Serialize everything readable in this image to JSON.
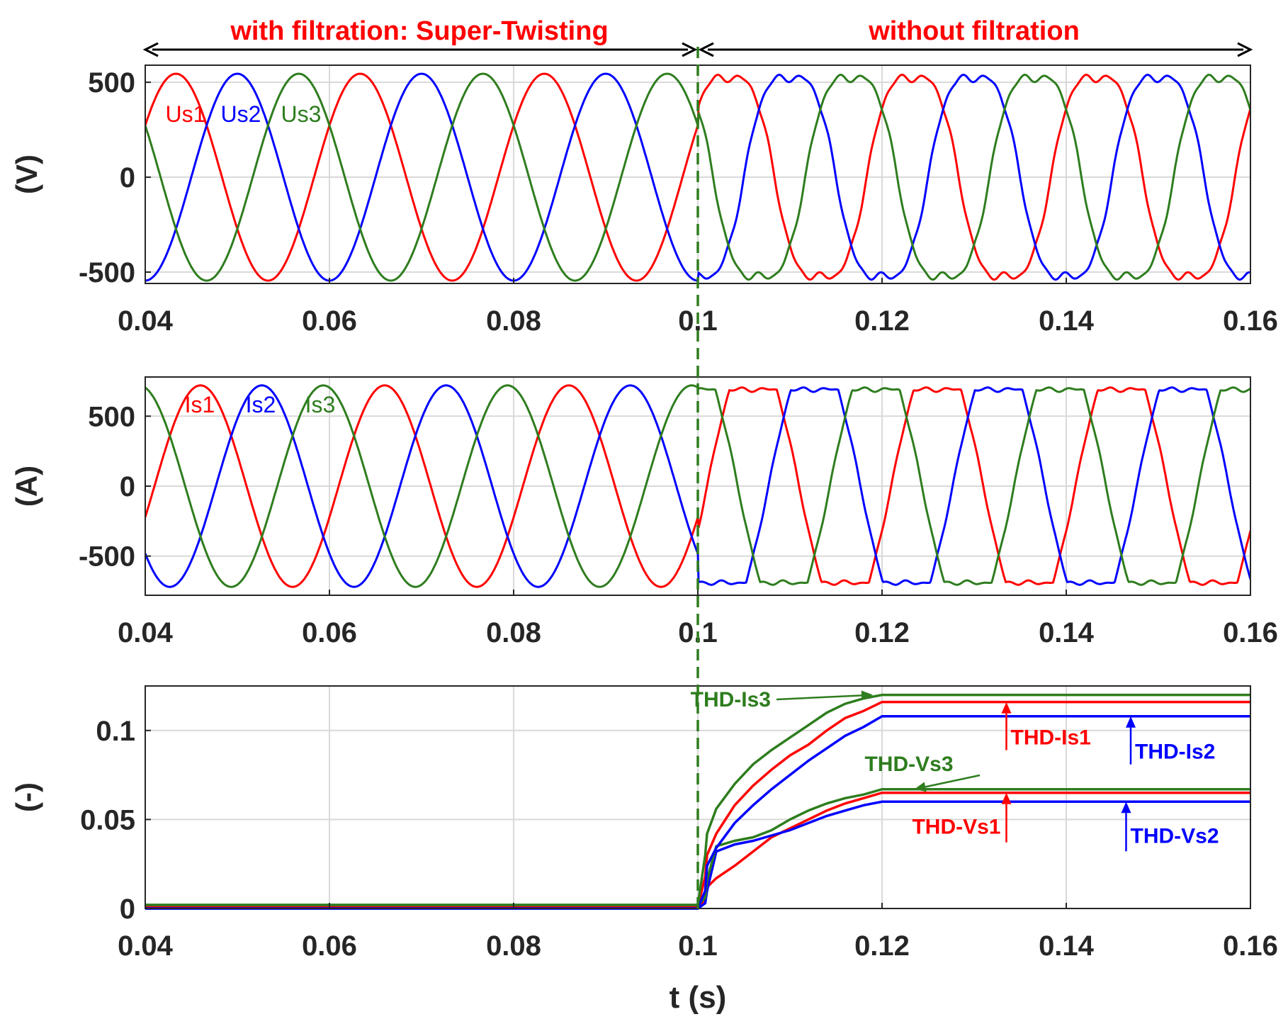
{
  "colors": {
    "phase1": "#ff0000",
    "phase2": "#0000ff",
    "phase3": "#2e7d1e",
    "text": "#262626",
    "grid": "#d9d9d9",
    "marker": "#2e7d1e"
  },
  "banner": {
    "left_label": "with filtration: Super-Twisting",
    "right_label": "without filtration",
    "left_range": [
      0.04,
      0.1
    ],
    "right_range": [
      0.1,
      0.16
    ],
    "color": "#ff0000"
  },
  "switch_time": 0.1,
  "chart_data": [
    {
      "id": "voltage",
      "type": "line",
      "ylabel": "(V)",
      "xlabel": "",
      "xlim": [
        0.04,
        0.16
      ],
      "ylim": [
        -560,
        590
      ],
      "xticks": [
        0.04,
        0.06,
        0.08,
        0.1,
        0.12,
        0.14,
        0.16
      ],
      "xtick_labels": [
        "0.04",
        "0.06",
        "0.08",
        "0.1",
        "0.12",
        "0.14",
        "0.16"
      ],
      "yticks": [
        -500,
        0,
        500
      ],
      "ytick_labels": [
        "-500",
        "0",
        "500"
      ],
      "waveform": {
        "amplitude": 545,
        "frequency_hz": 50,
        "phase_offsets_deg": [
          0,
          -120,
          120
        ],
        "base_phase_deg": 30,
        "distortion_after_switch": "flattened-top"
      },
      "series": [
        {
          "name": "Us1",
          "label": "Us1",
          "color": "#ff0000"
        },
        {
          "name": "Us2",
          "label": "Us2",
          "color": "#0000ff"
        },
        {
          "name": "Us3",
          "label": "Us3",
          "color": "#2e7d1e"
        }
      ]
    },
    {
      "id": "current",
      "type": "line",
      "ylabel": "(A)",
      "xlabel": "",
      "xlim": [
        0.04,
        0.16
      ],
      "ylim": [
        -780,
        780
      ],
      "xticks": [
        0.04,
        0.06,
        0.08,
        0.1,
        0.12,
        0.14,
        0.16
      ],
      "xtick_labels": [
        "0.04",
        "0.06",
        "0.08",
        "0.1",
        "0.12",
        "0.14",
        "0.16"
      ],
      "yticks": [
        -500,
        0,
        500
      ],
      "ytick_labels": [
        "-500",
        "0",
        "500"
      ],
      "waveform": {
        "amplitude": 720,
        "frequency_hz": 50,
        "phase_offsets_deg": [
          0,
          -120,
          120
        ],
        "base_phase_deg": -18,
        "distortion_after_switch": "trapezoidal",
        "clip_level": 690
      },
      "series": [
        {
          "name": "Is1",
          "label": "Is1",
          "color": "#ff0000"
        },
        {
          "name": "Is2",
          "label": "Is2",
          "color": "#0000ff"
        },
        {
          "name": "Is3",
          "label": "Is3",
          "color": "#2e7d1e"
        }
      ]
    },
    {
      "id": "thd",
      "type": "line",
      "ylabel": "(-)",
      "xlabel": "t (s)",
      "xlim": [
        0.04,
        0.16
      ],
      "ylim": [
        0,
        0.125
      ],
      "xticks": [
        0.04,
        0.06,
        0.08,
        0.1,
        0.12,
        0.14,
        0.16
      ],
      "xtick_labels": [
        "0.04",
        "0.06",
        "0.08",
        "0.1",
        "0.12",
        "0.14",
        "0.16"
      ],
      "yticks": [
        0,
        0.05,
        0.1
      ],
      "ytick_labels": [
        "0",
        "0.05",
        "0.1"
      ],
      "series": [
        {
          "name": "THD-Is1",
          "color": "#ff0000",
          "x": [
            0.04,
            0.1,
            0.1008,
            0.101,
            0.102,
            0.104,
            0.106,
            0.108,
            0.11,
            0.112,
            0.114,
            0.116,
            0.118,
            0.12,
            0.16
          ],
          "values": [
            0.001,
            0.001,
            0.018,
            0.03,
            0.042,
            0.058,
            0.069,
            0.078,
            0.086,
            0.092,
            0.1,
            0.107,
            0.111,
            0.116,
            0.116
          ]
        },
        {
          "name": "THD-Is2",
          "color": "#0000ff",
          "x": [
            0.04,
            0.1,
            0.1008,
            0.101,
            0.102,
            0.104,
            0.106,
            0.108,
            0.11,
            0.112,
            0.114,
            0.116,
            0.118,
            0.12,
            0.16
          ],
          "values": [
            0.0,
            0.0,
            0.01,
            0.024,
            0.034,
            0.048,
            0.058,
            0.067,
            0.075,
            0.083,
            0.09,
            0.097,
            0.102,
            0.108,
            0.108
          ]
        },
        {
          "name": "THD-Is3",
          "color": "#2e7d1e",
          "x": [
            0.04,
            0.1,
            0.1008,
            0.101,
            0.102,
            0.104,
            0.106,
            0.108,
            0.11,
            0.112,
            0.114,
            0.116,
            0.118,
            0.12,
            0.16
          ],
          "values": [
            0.002,
            0.002,
            0.03,
            0.042,
            0.056,
            0.07,
            0.081,
            0.089,
            0.096,
            0.103,
            0.11,
            0.115,
            0.118,
            0.12,
            0.12
          ]
        },
        {
          "name": "THD-Vs1",
          "color": "#ff0000",
          "x": [
            0.04,
            0.1,
            0.1008,
            0.101,
            0.102,
            0.104,
            0.106,
            0.108,
            0.11,
            0.112,
            0.114,
            0.116,
            0.118,
            0.12,
            0.16
          ],
          "values": [
            0.001,
            0.001,
            0.004,
            0.012,
            0.017,
            0.024,
            0.032,
            0.04,
            0.045,
            0.05,
            0.055,
            0.059,
            0.062,
            0.065,
            0.065
          ]
        },
        {
          "name": "THD-Vs2",
          "color": "#0000ff",
          "x": [
            0.04,
            0.1,
            0.1008,
            0.101,
            0.102,
            0.104,
            0.106,
            0.108,
            0.11,
            0.112,
            0.114,
            0.116,
            0.118,
            0.12,
            0.16
          ],
          "values": [
            0.0,
            0.0,
            0.003,
            0.01,
            0.032,
            0.036,
            0.038,
            0.041,
            0.044,
            0.048,
            0.052,
            0.055,
            0.058,
            0.06,
            0.06
          ]
        },
        {
          "name": "THD-Vs3",
          "color": "#2e7d1e",
          "x": [
            0.04,
            0.1,
            0.1008,
            0.101,
            0.102,
            0.104,
            0.106,
            0.108,
            0.11,
            0.112,
            0.114,
            0.116,
            0.118,
            0.12,
            0.16
          ],
          "values": [
            0.002,
            0.002,
            0.006,
            0.016,
            0.035,
            0.038,
            0.04,
            0.044,
            0.05,
            0.055,
            0.059,
            0.062,
            0.064,
            0.067,
            0.067
          ]
        }
      ],
      "annotations": [
        {
          "text": "THD-Is3",
          "color": "#2e7d1e",
          "points_to_x": 0.119,
          "points_to_y": 0.12
        },
        {
          "text": "THD-Is1",
          "color": "#ff0000",
          "points_to_x": 0.1335,
          "points_to_y": 0.116
        },
        {
          "text": "THD-Is2",
          "color": "#0000ff",
          "points_to_x": 0.147,
          "points_to_y": 0.108
        },
        {
          "text": "THD-Vs3",
          "color": "#2e7d1e",
          "points_to_x": 0.1235,
          "points_to_y": 0.067
        },
        {
          "text": "THD-Vs1",
          "color": "#ff0000",
          "points_to_x": 0.1335,
          "points_to_y": 0.065
        },
        {
          "text": "THD-Vs2",
          "color": "#0000ff",
          "points_to_x": 0.1465,
          "points_to_y": 0.06
        }
      ]
    }
  ]
}
